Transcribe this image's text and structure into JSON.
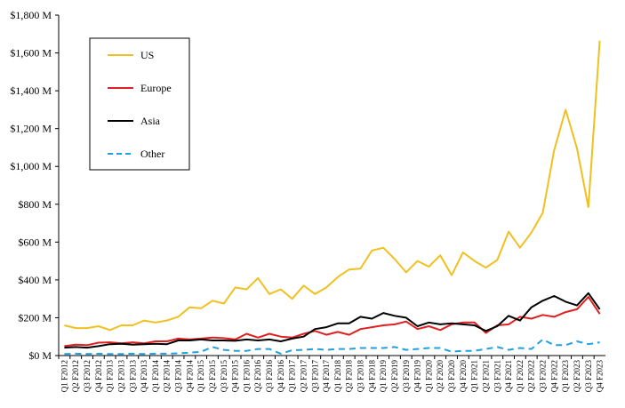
{
  "chart_data": {
    "type": "line",
    "title": "",
    "xlabel": "",
    "ylabel": "",
    "ylim": [
      0,
      1800
    ],
    "yticks": [
      "$0 M",
      "$200 M",
      "$400 M",
      "$600 M",
      "$800 M",
      "$1,000 M",
      "$1,200 M",
      "$1,400 M",
      "$1,600 M",
      "$1,800 M"
    ],
    "ytick_values": [
      0,
      200,
      400,
      600,
      800,
      1000,
      1200,
      1400,
      1600,
      1800
    ],
    "grid": false,
    "legend_position": "top-left",
    "categories": [
      "Q1 F2012",
      "Q2 F2012",
      "Q3 F2012",
      "Q4 F2012",
      "Q1 F2013",
      "Q2 F2013",
      "Q3 F2013",
      "Q4 F2013",
      "Q1 F2014",
      "Q2 F2014",
      "Q3 F2014",
      "Q4 F2014",
      "Q1 F2015",
      "Q2 F2015",
      "Q3 F2015",
      "Q4 F2015",
      "Q1 F2016",
      "Q2 F2016",
      "Q3 F2016",
      "Q4 F2016",
      "Q1 F2017",
      "Q2 F2017",
      "Q3 F2017",
      "Q4 F2017",
      "Q1 F2018",
      "Q2 F2018",
      "Q3 F2018",
      "Q4 F2018",
      "Q1 F2019",
      "Q2 F2019",
      "Q3 F2019",
      "Q4 F2019",
      "Q1 F2020",
      "Q2 F2020",
      "Q3 F2020",
      "Q4 F2020",
      "Q1 F2021",
      "Q2 F2021",
      "Q3 F2021",
      "Q4 F2021",
      "Q1 F2022",
      "Q2 F2022",
      "Q3 F2022",
      "Q4 F2022",
      "Q1 F2023",
      "Q2 F2023",
      "Q3 F2023",
      "Q4 F2023"
    ],
    "series": [
      {
        "name": "US",
        "color": "#F0C020",
        "dash": "solid",
        "values": [
          160,
          145,
          145,
          155,
          135,
          160,
          160,
          185,
          175,
          185,
          205,
          255,
          250,
          290,
          275,
          360,
          350,
          410,
          325,
          350,
          300,
          370,
          325,
          360,
          415,
          455,
          460,
          555,
          570,
          510,
          440,
          500,
          470,
          530,
          425,
          545,
          500,
          465,
          505,
          655,
          570,
          650,
          755,
          1085,
          1300,
          1095,
          785,
          1665
        ]
      },
      {
        "name": "Europe",
        "color": "#E02020",
        "dash": "solid",
        "values": [
          50,
          58,
          55,
          68,
          70,
          65,
          70,
          65,
          75,
          75,
          90,
          85,
          90,
          95,
          92,
          85,
          115,
          95,
          115,
          100,
          95,
          115,
          130,
          110,
          125,
          110,
          140,
          150,
          160,
          165,
          180,
          140,
          155,
          135,
          165,
          175,
          175,
          120,
          160,
          165,
          205,
          195,
          215,
          205,
          230,
          245,
          310,
          220
        ]
      },
      {
        "name": "Asia",
        "color": "#000000",
        "dash": "solid",
        "values": [
          42,
          45,
          42,
          50,
          60,
          62,
          58,
          60,
          62,
          60,
          80,
          80,
          85,
          80,
          80,
          78,
          85,
          80,
          85,
          75,
          90,
          100,
          140,
          150,
          170,
          170,
          205,
          195,
          225,
          210,
          200,
          155,
          175,
          165,
          170,
          165,
          160,
          130,
          155,
          210,
          185,
          255,
          290,
          315,
          285,
          265,
          330,
          245
        ]
      },
      {
        "name": "Other",
        "color": "#1FA0E0",
        "dash": "dashed",
        "values": [
          8,
          10,
          8,
          10,
          8,
          8,
          10,
          8,
          10,
          10,
          12,
          15,
          20,
          45,
          30,
          25,
          25,
          35,
          35,
          10,
          28,
          30,
          35,
          30,
          35,
          35,
          40,
          40,
          40,
          45,
          30,
          35,
          40,
          40,
          20,
          25,
          25,
          35,
          45,
          30,
          40,
          35,
          85,
          55,
          55,
          75,
          60,
          70
        ]
      }
    ]
  }
}
